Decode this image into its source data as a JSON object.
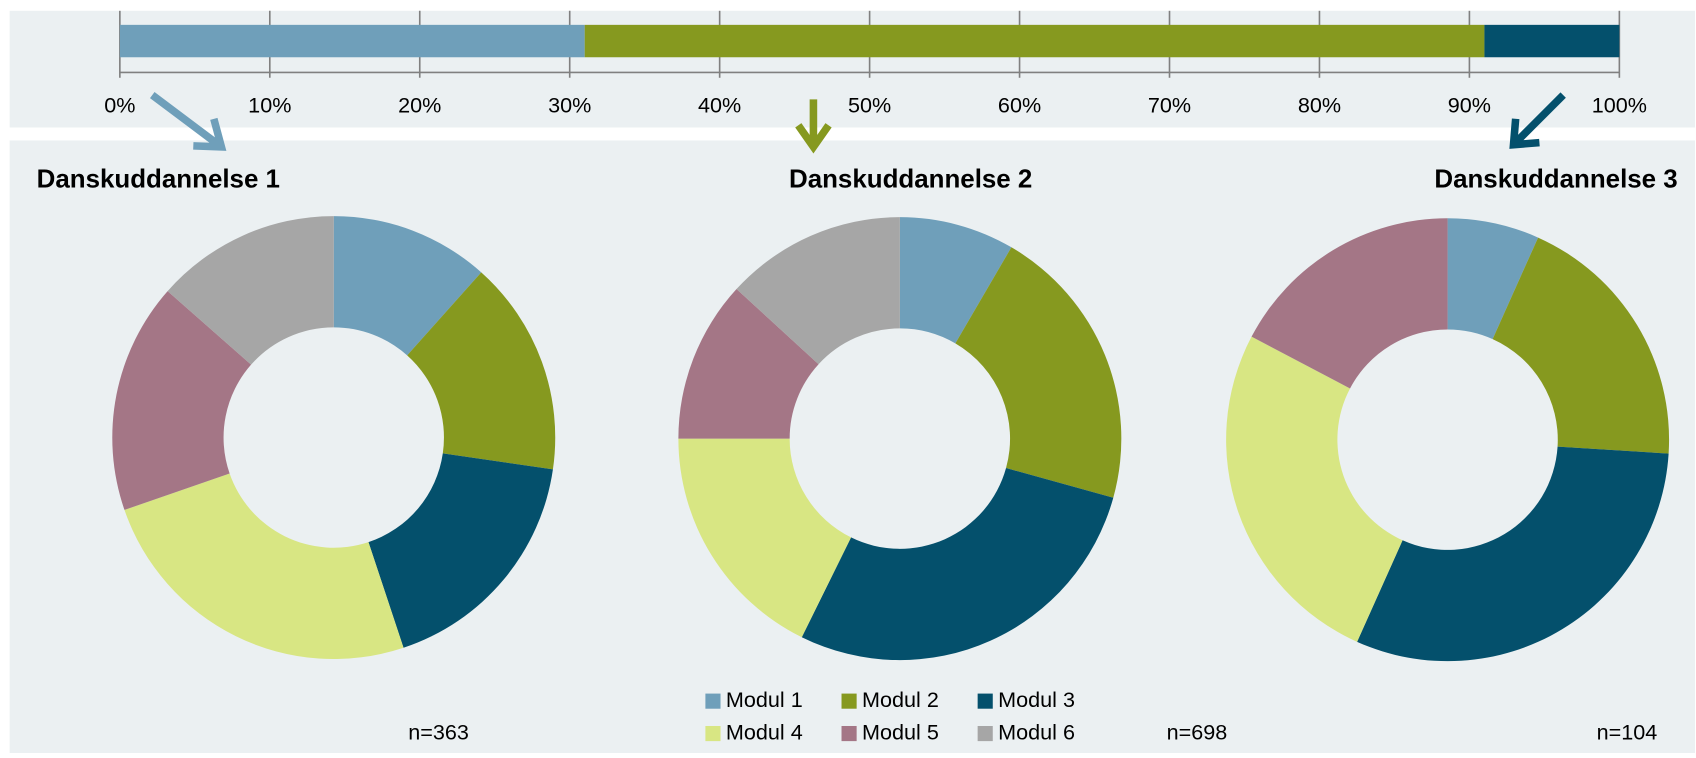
{
  "chart_data": [
    {
      "type": "bar",
      "orientation": "horizontal",
      "stacked": true,
      "series": [
        {
          "color": "#6f9fba",
          "values": [
            31
          ]
        },
        {
          "color": "#86991f",
          "values": [
            60
          ]
        },
        {
          "color": "#04506c",
          "values": [
            9
          ]
        }
      ],
      "xlim": [
        0,
        100
      ],
      "xticks": [
        {
          "value": 0,
          "label": "0%"
        },
        {
          "value": 10,
          "label": "10%"
        },
        {
          "value": 20,
          "label": "20%"
        },
        {
          "value": 30,
          "label": "30%"
        },
        {
          "value": 40,
          "label": "40%"
        },
        {
          "value": 50,
          "label": "50%"
        },
        {
          "value": 60,
          "label": "60%"
        },
        {
          "value": 70,
          "label": "70%"
        },
        {
          "value": 80,
          "label": "80%"
        },
        {
          "value": 90,
          "label": "90%"
        },
        {
          "value": 100,
          "label": "100%"
        }
      ]
    },
    {
      "type": "pie",
      "donut": true,
      "title": "Danskuddannelse 1",
      "annotation": "n=363",
      "values": [
        11.6,
        15.7,
        17.6,
        24.8,
        16.8,
        13.5
      ]
    },
    {
      "type": "pie",
      "donut": true,
      "title": "Danskuddannelse 2",
      "annotation": "n=698",
      "values": [
        8.4,
        20.9,
        28.0,
        17.7,
        11.8,
        13.2
      ]
    },
    {
      "type": "pie",
      "donut": true,
      "title": "Danskuddannelse 3",
      "annotation": "n=104",
      "values": [
        6.7,
        19.3,
        30.7,
        26.0,
        17.3,
        0
      ]
    }
  ],
  "legend": {
    "categories": [
      "Modul 1",
      "Modul 2",
      "Modul 3",
      "Modul 4",
      "Modul 5",
      "Modul 6"
    ],
    "colors": [
      "#6f9fba",
      "#86991f",
      "#04506c",
      "#d8e683",
      "#a47686",
      "#a6a6a6"
    ]
  }
}
